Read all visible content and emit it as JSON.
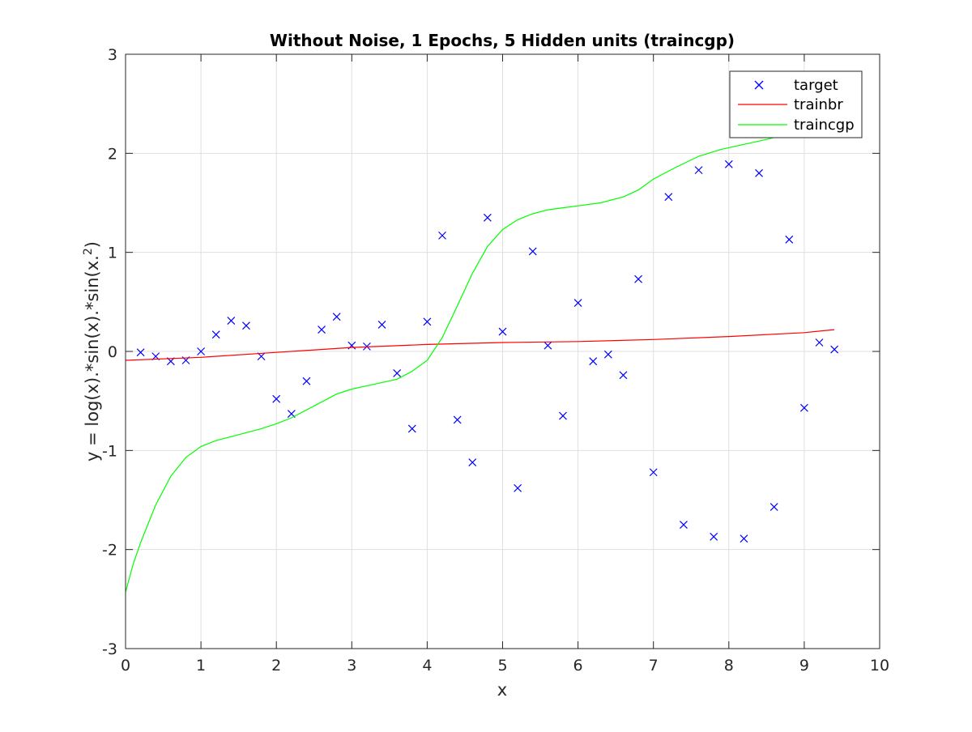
{
  "chart_data": {
    "type": "line",
    "title": "Without Noise, 1 Epochs, 5 Hidden units (traincgp)",
    "xlabel": "x",
    "ylabel": "y = log(x).*sin(x).*sin(x.",
    "ylabel_sup": "2",
    "ylabel_tail": ")",
    "xlim": [
      0,
      10
    ],
    "ylim": [
      -3,
      3
    ],
    "x_ticks": [
      0,
      1,
      2,
      3,
      4,
      5,
      6,
      7,
      8,
      9,
      10
    ],
    "y_ticks": [
      -3,
      -2,
      -1,
      0,
      1,
      2,
      3
    ],
    "grid": true,
    "legend_position": "top-right",
    "series": [
      {
        "name": "target",
        "kind": "scatter",
        "marker": "x",
        "color": "#0000ff",
        "x": [
          0.2,
          0.4,
          0.6,
          0.8,
          1.0,
          1.2,
          1.4,
          1.6,
          1.8,
          2.0,
          2.2,
          2.4,
          2.6,
          2.8,
          3.0,
          3.2,
          3.4,
          3.6,
          3.8,
          4.0,
          4.2,
          4.4,
          4.6,
          4.8,
          5.0,
          5.2,
          5.4,
          5.6,
          5.8,
          6.0,
          6.2,
          6.4,
          6.6,
          6.8,
          7.0,
          7.2,
          7.4,
          7.6,
          7.8,
          8.0,
          8.2,
          8.4,
          8.6,
          8.8,
          9.0,
          9.2,
          9.4
        ],
        "y": [
          -0.01,
          -0.05,
          -0.1,
          -0.09,
          0.0,
          0.17,
          0.31,
          0.26,
          -0.05,
          -0.48,
          -0.63,
          -0.3,
          0.22,
          0.35,
          0.06,
          0.05,
          0.27,
          -0.22,
          -0.78,
          0.3,
          1.17,
          -0.69,
          -1.12,
          1.35,
          0.2,
          -1.38,
          1.01,
          0.06,
          -0.65,
          0.49,
          -0.1,
          -0.03,
          -0.24,
          0.73,
          -1.22,
          1.56,
          -1.75,
          1.83,
          -1.87,
          1.89,
          -1.89,
          1.8,
          -1.57,
          1.13,
          -0.57,
          0.09,
          0.02
        ]
      },
      {
        "name": "trainbr",
        "kind": "line",
        "color": "#ff0000",
        "x": [
          0,
          1,
          2,
          3,
          4,
          5,
          6,
          7,
          8,
          9,
          9.4
        ],
        "y": [
          -0.09,
          -0.06,
          -0.01,
          0.04,
          0.07,
          0.09,
          0.1,
          0.12,
          0.15,
          0.19,
          0.22
        ]
      },
      {
        "name": "traincgp",
        "kind": "line",
        "color": "#00ff00",
        "x": [
          0,
          0.1,
          0.2,
          0.4,
          0.6,
          0.8,
          1.0,
          1.2,
          1.5,
          1.8,
          2.0,
          2.2,
          2.5,
          2.8,
          3.0,
          3.3,
          3.6,
          3.8,
          4.0,
          4.2,
          4.4,
          4.6,
          4.8,
          5.0,
          5.2,
          5.4,
          5.6,
          5.8,
          6.0,
          6.3,
          6.6,
          6.8,
          7.0,
          7.3,
          7.6,
          7.9,
          8.2,
          8.5,
          8.8,
          9.1,
          9.4
        ],
        "y": [
          -2.43,
          -2.15,
          -1.93,
          -1.55,
          -1.26,
          -1.07,
          -0.96,
          -0.9,
          -0.84,
          -0.78,
          -0.73,
          -0.67,
          -0.55,
          -0.43,
          -0.38,
          -0.33,
          -0.28,
          -0.2,
          -0.09,
          0.14,
          0.46,
          0.79,
          1.06,
          1.23,
          1.33,
          1.39,
          1.43,
          1.45,
          1.47,
          1.5,
          1.56,
          1.63,
          1.74,
          1.86,
          1.97,
          2.04,
          2.09,
          2.14,
          2.2,
          2.3,
          2.45
        ]
      }
    ]
  }
}
